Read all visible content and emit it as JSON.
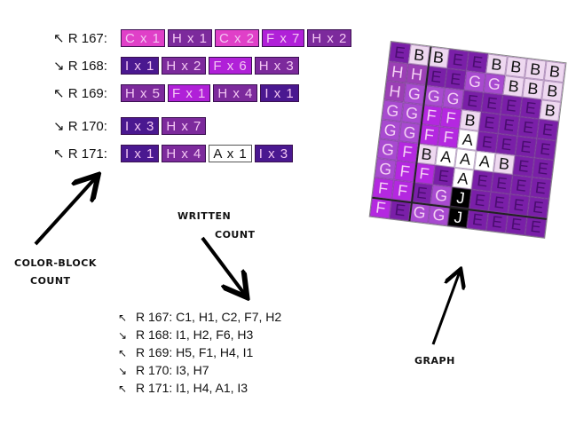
{
  "colors": {
    "C": "#e040c8",
    "H": "#7c2a9c",
    "F": "#b020d8",
    "I": "#4a1890",
    "A": "#ffffff"
  },
  "color_block_rows": [
    {
      "label": "↖ R 167:",
      "blocks": [
        "C x 1",
        "H x 1",
        "C x 2",
        "F x 7",
        "H x 2"
      ]
    },
    {
      "label": "↘ R 168:",
      "blocks": [
        "I x 1",
        "H x 2",
        "F x 6",
        "H x 3"
      ]
    },
    {
      "label": "↖ R 169:",
      "blocks": [
        "H x 5",
        "F x 1",
        "H x 4",
        "I x 1"
      ]
    },
    {
      "label": "↘ R 170:",
      "blocks": [
        "I x 3",
        "H x 7"
      ]
    },
    {
      "label": "↖ R 171:",
      "blocks": [
        "I x 1",
        "H x 4",
        "A x 1",
        "I x 3"
      ]
    }
  ],
  "captions": {
    "color_block_1": "COLOR-BLOCK",
    "color_block_2": "COUNT",
    "written_1": "WRITTEN",
    "written_2": "COUNT",
    "graph": "GRAPH"
  },
  "written_rows": [
    {
      "arrow": "↖",
      "text": "R 167: C1, H1, C2, F7, H2"
    },
    {
      "arrow": "↘",
      "text": "R 168: I1, H2, F6, H3"
    },
    {
      "arrow": "↖",
      "text": "R 169: H5, F1, H4, I1"
    },
    {
      "arrow": "↘",
      "text": "R 170: I3, H7"
    },
    {
      "arrow": "↖",
      "text": "R 171: I1, H4, A1, I3"
    }
  ],
  "graph_colors": {
    "E": "#7a1fa8",
    "B": "#eed8f0",
    "H": "#9b3fb5",
    "G": "#a84ad0",
    "F": "#b428e0",
    "A": "#ffffff",
    "J": "#000000"
  },
  "graph_rows": [
    "EBBEEBBBB",
    "HHEEGGBBB",
    "HGGGEEEEB",
    "GGFFBEEEE",
    "GGFFAEEEE",
    "GFBAAABEE",
    "GFFEAEEEE",
    "FFEGJEEEE",
    "FEGGJEEEE"
  ]
}
